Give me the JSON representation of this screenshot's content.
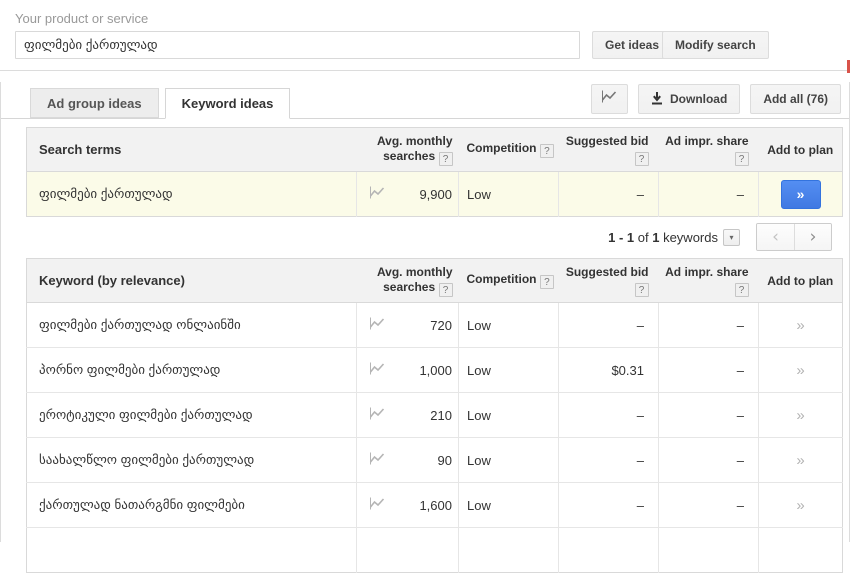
{
  "search_form": {
    "label": "Your product or service",
    "input_value": "ფილმები ქართულად",
    "get_ideas_label": "Get ideas",
    "modify_search_label": "Modify search"
  },
  "tabs": {
    "ad_group_ideas": "Ad group ideas",
    "keyword_ideas": "Keyword ideas"
  },
  "toolbar": {
    "download_label": "Download",
    "add_all_label": "Add all (76)"
  },
  "columns": {
    "search_terms": "Search terms",
    "keyword_by_relevance": "Keyword (by relevance)",
    "avg_line1": "Avg. monthly",
    "avg_line2": "searches",
    "competition": "Competition",
    "suggested_bid": "Suggested bid",
    "ad_impr_share": "Ad impr. share",
    "add_to_plan": "Add to plan",
    "help_glyph": "?"
  },
  "search_terms_table": {
    "rows": [
      {
        "keyword": "ფილმები ქართულად",
        "searches": "9,900",
        "competition": "Low",
        "bid": "–",
        "share": "–"
      }
    ]
  },
  "pagination": {
    "range": "1 - 1",
    "of_label": "of",
    "total": "1",
    "unit_label": "keywords",
    "caret": "▾",
    "prev": "‹",
    "next": "›"
  },
  "keyword_table": {
    "rows": [
      {
        "keyword": "ფილმები ქართულად ონლაინში",
        "searches": "720",
        "competition": "Low",
        "bid": "–",
        "share": "–"
      },
      {
        "keyword": "პორნო ფილმები ქართულად",
        "searches": "1,000",
        "competition": "Low",
        "bid": "$0.31",
        "share": "–"
      },
      {
        "keyword": "ეროტიკული ფილმები ქართულად",
        "searches": "210",
        "competition": "Low",
        "bid": "–",
        "share": "–"
      },
      {
        "keyword": "საახალწლო ფილმები ქართულად",
        "searches": "90",
        "competition": "Low",
        "bid": "–",
        "share": "–"
      },
      {
        "keyword": "ქართულად ნათარგმნი ფილმები",
        "searches": "1,600",
        "competition": "Low",
        "bid": "–",
        "share": "–"
      }
    ]
  },
  "glyphs": {
    "add_chevron": "»"
  },
  "colors": {
    "accent_blue": "#4079e2",
    "highlight_row": "#fbfbe8"
  }
}
